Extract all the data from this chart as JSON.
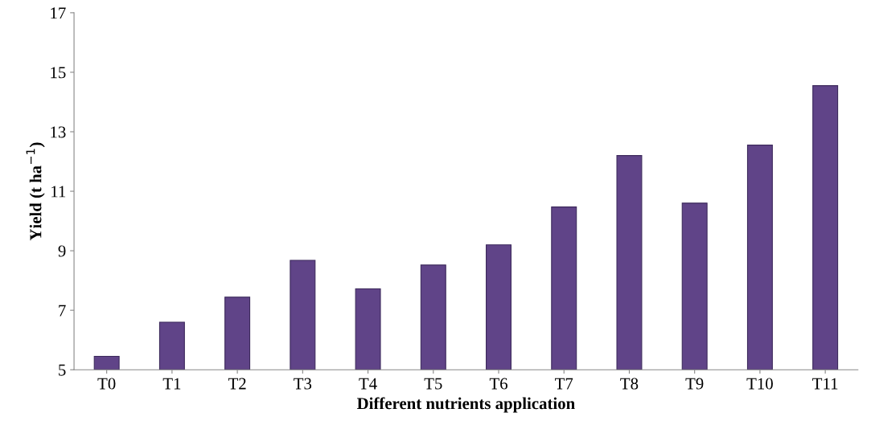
{
  "chart_data": {
    "type": "bar",
    "xlabel": "Different nutrients application",
    "ylabel": "Yield (t ha$^{−1}$)",
    "categories": [
      "T0",
      "T1",
      "T2",
      "T3",
      "T4",
      "T5",
      "T6",
      "T7",
      "T8",
      "T9",
      "T10",
      "T11"
    ],
    "values": [
      5.45,
      6.6,
      7.44,
      8.68,
      7.72,
      8.52,
      9.2,
      10.47,
      12.2,
      10.6,
      12.55,
      14.55
    ],
    "color": "#604488",
    "ylim": [
      5,
      17
    ],
    "yticks": [
      5,
      7,
      9,
      11,
      13,
      15,
      17
    ],
    "grid": false,
    "legend": false
  }
}
